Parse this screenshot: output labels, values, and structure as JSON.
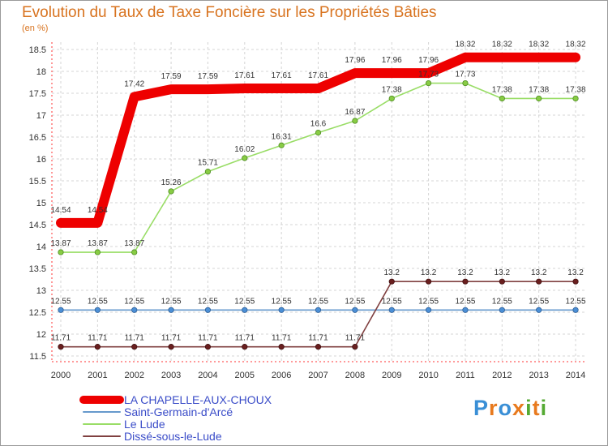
{
  "title": "Evolution du Taux de Taxe Foncière sur les Propriétés Bâties",
  "unit": "(en %)",
  "logo": "Proxiti",
  "chart_data": {
    "type": "line",
    "title": "Evolution du Taux de Taxe Foncière sur les Propriétés Bâties",
    "ylabel": "(en %)",
    "xlabel": "",
    "ylim": [
      11.5,
      18.5
    ],
    "yticks": [
      11.5,
      12,
      12.5,
      13,
      13.5,
      14,
      14.5,
      15,
      15.5,
      16,
      16.5,
      17,
      17.5,
      18,
      18.5
    ],
    "categories": [
      "2000",
      "2001",
      "2002",
      "2003",
      "2004",
      "2005",
      "2006",
      "2007",
      "2008",
      "2009",
      "2010",
      "2011",
      "2012",
      "2013",
      "2014"
    ],
    "legend_position": "bottom-left",
    "series": [
      {
        "name": "LA CHAPELLE-AUX-CHOUX",
        "color": "#ee0000",
        "values": [
          14.54,
          14.54,
          17.42,
          17.59,
          17.59,
          17.61,
          17.61,
          17.61,
          17.96,
          17.96,
          17.96,
          18.32,
          18.32,
          18.32,
          18.32
        ]
      },
      {
        "name": "Saint-Germain-d'Arcé",
        "color": "#6699cc",
        "values": [
          12.55,
          12.55,
          12.55,
          12.55,
          12.55,
          12.55,
          12.55,
          12.55,
          12.55,
          12.55,
          12.55,
          12.55,
          12.55,
          12.55,
          12.55
        ]
      },
      {
        "name": "Le Lude",
        "color": "#99dd66",
        "values": [
          13.87,
          13.87,
          13.87,
          15.26,
          15.71,
          16.02,
          16.31,
          16.6,
          16.87,
          17.38,
          17.73,
          17.73,
          17.38,
          17.38,
          17.38
        ]
      },
      {
        "name": "Dissé-sous-le-Lude",
        "color": "#804040",
        "values": [
          11.71,
          11.71,
          11.71,
          11.71,
          11.71,
          11.71,
          11.71,
          11.71,
          11.71,
          13.2,
          13.2,
          13.2,
          13.2,
          13.2,
          13.2
        ]
      }
    ]
  }
}
